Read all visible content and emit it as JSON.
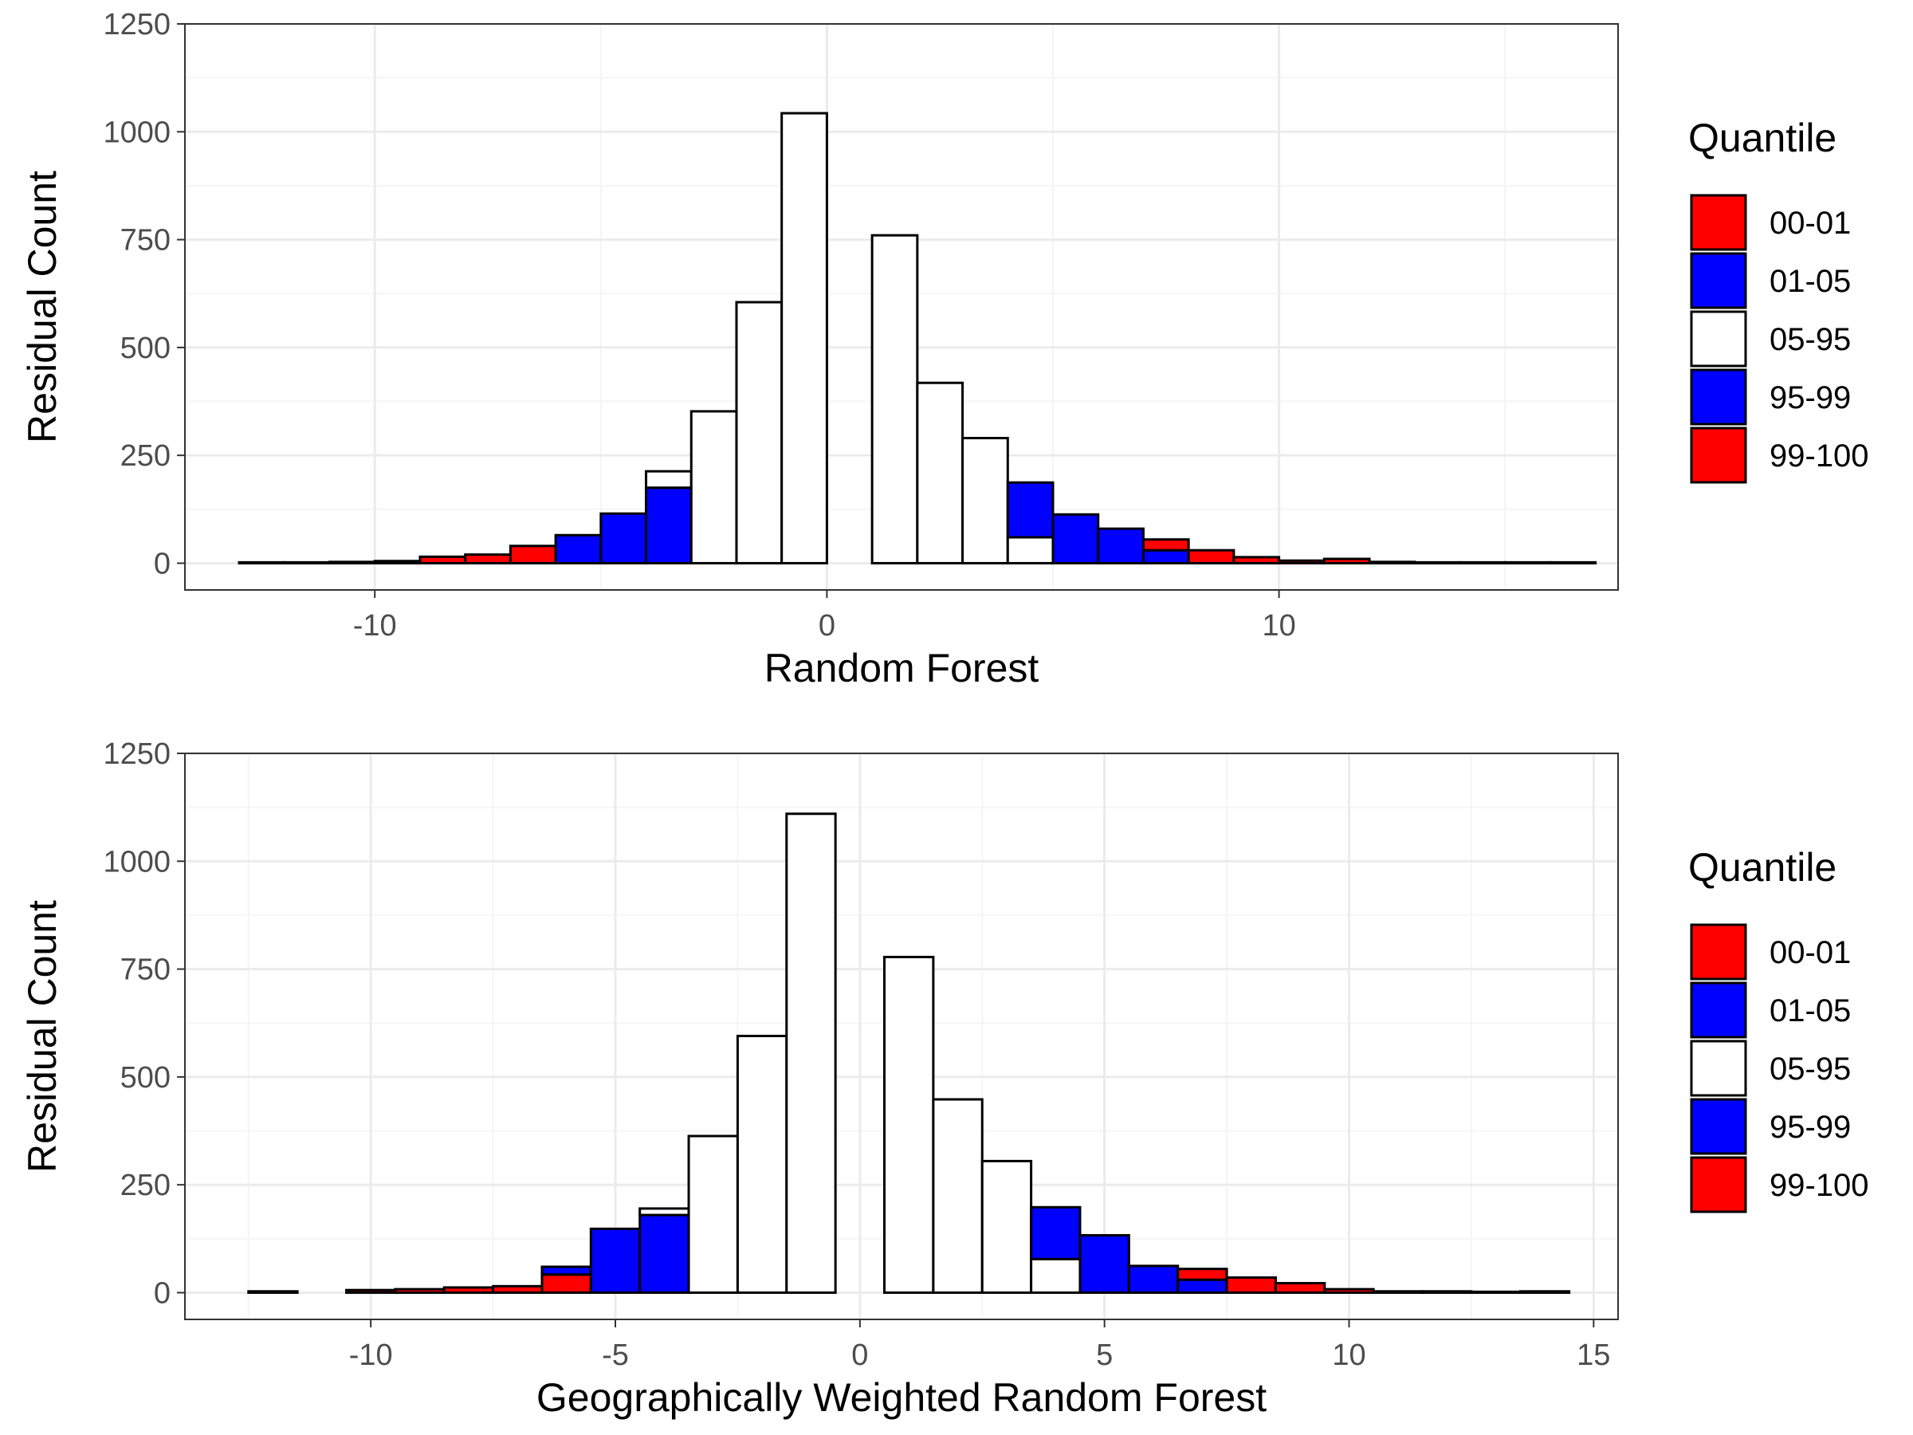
{
  "colors": {
    "red": "#ff0000",
    "blue": "#0000ff",
    "white": "#ffffff",
    "outline": "#000000",
    "grid_major": "#ebebeb",
    "grid_minor": "#f5f5f5",
    "tick_text": "#4d4d4d"
  },
  "chart_data": [
    {
      "type": "bar",
      "xlabel": "Random Forest",
      "ylabel": "Residual Count",
      "xlim": [
        -14.2,
        17.5
      ],
      "ylim": [
        -62,
        1250
      ],
      "x_ticks": [
        -10,
        0,
        10
      ],
      "x_tick_labels": [
        "-10",
        "0",
        "10"
      ],
      "y_ticks": [
        0,
        250,
        500,
        750,
        1000,
        1250
      ],
      "y_tick_labels": [
        "0",
        "250",
        "500",
        "750",
        "1000",
        "1250"
      ],
      "grid": true,
      "legend": {
        "title": "Quantile",
        "position": "right",
        "entries": [
          {
            "label": "00-01",
            "color": "#ff0000"
          },
          {
            "label": "01-05",
            "color": "#0000ff"
          },
          {
            "label": "05-95",
            "color": "#ffffff"
          },
          {
            "label": "95-99",
            "color": "#0000ff"
          },
          {
            "label": "99-100",
            "color": "#ff0000"
          }
        ]
      },
      "bin_width": 1,
      "series": [
        {
          "name": "00-01",
          "bins": [
            [
              -12.5,
              2
            ],
            [
              -11.5,
              2
            ],
            [
              -10.5,
              3
            ],
            [
              -9.5,
              5
            ],
            [
              -8.5,
              15
            ],
            [
              -7.5,
              20
            ],
            [
              -6.5,
              40
            ]
          ]
        },
        {
          "name": "01-05",
          "bins": [
            [
              -5.5,
              65
            ],
            [
              -4.5,
              115
            ],
            [
              -3.5,
              175
            ]
          ]
        },
        {
          "name": "05-95",
          "bins": [
            [
              -3.5,
              38
            ],
            [
              -2.5,
              352
            ],
            [
              -1.5,
              605
            ],
            [
              -0.5,
              1043
            ],
            [
              1.5,
              760
            ],
            [
              2.5,
              418
            ],
            [
              3.5,
              290
            ],
            [
              4.5,
              60
            ]
          ]
        },
        {
          "name": "95-99",
          "bins": [
            [
              4.5,
              127
            ],
            [
              5.5,
              113
            ],
            [
              6.5,
              80
            ],
            [
              7.5,
              30
            ]
          ]
        },
        {
          "name": "99-100",
          "bins": [
            [
              7.5,
              25
            ],
            [
              8.5,
              30
            ],
            [
              9.5,
              14
            ],
            [
              10.5,
              6
            ],
            [
              11.5,
              10
            ],
            [
              12.5,
              3
            ],
            [
              13.5,
              2
            ],
            [
              14.5,
              2
            ],
            [
              15.5,
              2
            ],
            [
              16.5,
              2
            ]
          ]
        }
      ]
    },
    {
      "type": "bar",
      "xlabel": "Geographically Weighted Random Forest",
      "ylabel": "Residual Count",
      "xlim": [
        -13.8,
        15.5
      ],
      "ylim": [
        -62,
        1250
      ],
      "x_ticks": [
        -10,
        -5,
        0,
        5,
        10,
        15
      ],
      "x_tick_labels": [
        "-10",
        "-5",
        "0",
        "5",
        "10",
        "15"
      ],
      "y_ticks": [
        0,
        250,
        500,
        750,
        1000,
        1250
      ],
      "y_tick_labels": [
        "0",
        "250",
        "500",
        "750",
        "1000",
        "1250"
      ],
      "grid": true,
      "legend": {
        "title": "Quantile",
        "position": "right",
        "entries": [
          {
            "label": "00-01",
            "color": "#ff0000"
          },
          {
            "label": "01-05",
            "color": "#0000ff"
          },
          {
            "label": "05-95",
            "color": "#ffffff"
          },
          {
            "label": "95-99",
            "color": "#0000ff"
          },
          {
            "label": "99-100",
            "color": "#ff0000"
          }
        ]
      },
      "bin_width": 1,
      "series": [
        {
          "name": "00-01",
          "bins": [
            [
              -12,
              3
            ],
            [
              -10,
              6
            ],
            [
              -9,
              8
            ],
            [
              -8,
              12
            ],
            [
              -7,
              15
            ],
            [
              -6,
              42
            ]
          ]
        },
        {
          "name": "01-05",
          "bins": [
            [
              -6,
              18
            ],
            [
              -5,
              148
            ],
            [
              -4,
              180
            ]
          ]
        },
        {
          "name": "05-95",
          "bins": [
            [
              -4,
              15
            ],
            [
              -3,
              363
            ],
            [
              -2,
              595
            ],
            [
              -1,
              1110
            ],
            [
              1,
              778
            ],
            [
              2,
              448
            ],
            [
              3,
              305
            ],
            [
              4,
              78
            ]
          ]
        },
        {
          "name": "95-99",
          "bins": [
            [
              4,
              120
            ],
            [
              5,
              133
            ],
            [
              6,
              62
            ],
            [
              7,
              30
            ]
          ]
        },
        {
          "name": "99-100",
          "bins": [
            [
              7,
              25
            ],
            [
              8,
              35
            ],
            [
              9,
              22
            ],
            [
              10,
              8
            ],
            [
              11,
              3
            ],
            [
              12,
              3
            ],
            [
              13,
              2
            ],
            [
              14,
              3
            ]
          ]
        }
      ]
    }
  ]
}
